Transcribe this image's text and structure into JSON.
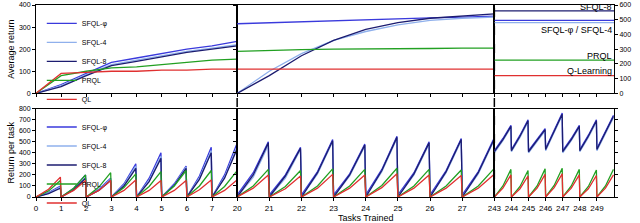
{
  "chart_data": [
    {
      "type": "line",
      "y_label": "Average return",
      "legend": "top left",
      "tick_labels": "y",
      "x": [
        0,
        1,
        2,
        3,
        4,
        5,
        6,
        7,
        8
      ],
      "xlim": [
        0,
        8
      ],
      "xticks": [
        0,
        1,
        2,
        3,
        4,
        5,
        6,
        7
      ],
      "ylim": [
        0,
        400
      ],
      "yticks": [
        0,
        100,
        200,
        300,
        400
      ],
      "series": [
        {
          "name": "SFQL-φ",
          "color": "#3a3adc",
          "values": [
            0,
            40,
            90,
            140,
            160,
            180,
            200,
            215,
            235
          ]
        },
        {
          "name": "SFQL-4",
          "color": "#8fb0ec",
          "values": [
            0,
            35,
            85,
            130,
            150,
            170,
            190,
            205,
            220
          ]
        },
        {
          "name": "SFQL-8",
          "color": "#1c1c70",
          "values": [
            0,
            30,
            80,
            125,
            145,
            165,
            185,
            200,
            215
          ]
        },
        {
          "name": "PRQL",
          "color": "#22a022",
          "values": [
            0,
            80,
            100,
            115,
            120,
            130,
            140,
            150,
            155
          ]
        },
        {
          "name": "QL",
          "color": "#e03030",
          "values": [
            0,
            90,
            95,
            100,
            100,
            105,
            105,
            110,
            110
          ]
        }
      ]
    },
    {
      "type": "line",
      "tick_labels": false,
      "x": [
        20,
        21,
        22,
        23,
        24,
        25,
        26,
        27,
        28
      ],
      "xlim": [
        20,
        28
      ],
      "xticks": [
        20,
        21,
        22,
        23,
        24,
        25,
        26,
        27
      ],
      "ylim": [
        0,
        400
      ],
      "yticks": [
        0,
        100,
        200,
        300,
        400
      ],
      "series": [
        {
          "color": "#3a3adc",
          "values": [
            315,
            320,
            325,
            330,
            335,
            340,
            342,
            345,
            350
          ]
        },
        {
          "color": "#8fb0ec",
          "values": [
            0,
            100,
            180,
            240,
            280,
            310,
            330,
            340,
            345
          ]
        },
        {
          "color": "#1c1c70",
          "values": [
            0,
            80,
            170,
            240,
            290,
            320,
            340,
            350,
            360
          ]
        },
        {
          "color": "#22a022",
          "values": [
            190,
            195,
            198,
            200,
            200,
            202,
            203,
            205,
            205
          ]
        },
        {
          "color": "#e03030",
          "values": [
            110,
            110,
            110,
            110,
            110,
            110,
            110,
            110,
            110
          ]
        }
      ]
    },
    {
      "type": "line",
      "tick_labels": "y",
      "x": [
        243,
        250
      ],
      "xlim": [
        243,
        250
      ],
      "xticks": [
        243,
        244,
        245,
        246,
        247,
        248,
        249
      ],
      "ylim": [
        0,
        600
      ],
      "yticks": [
        0,
        100,
        200,
        300,
        400,
        500,
        600
      ],
      "annotations": [
        {
          "text": "SFQL-8",
          "y": 585
        },
        {
          "text": "SFQL-φ / SFQL-4",
          "y": 430
        },
        {
          "text": "PRQL",
          "y": 255
        },
        {
          "text": "Q-Learning",
          "y": 150
        }
      ],
      "series": [
        {
          "color": "#3a3adc",
          "values": [
            495,
            495
          ]
        },
        {
          "color": "#8fb0ec",
          "values": [
            480,
            480
          ]
        },
        {
          "color": "#1c1c70",
          "values": [
            560,
            560
          ]
        },
        {
          "color": "#22a022",
          "values": [
            225,
            225
          ]
        },
        {
          "color": "#e03030",
          "values": [
            120,
            120
          ]
        }
      ]
    },
    {
      "type": "line",
      "y_label": "Return per task",
      "legend": "top left",
      "x": [
        0,
        0.5,
        0.97,
        1,
        1.5,
        1.97,
        2,
        2.5,
        2.97,
        3,
        3.5,
        3.97,
        4,
        4.5,
        4.97,
        5,
        5.5,
        5.97,
        6,
        6.5,
        6.97,
        7,
        7.5,
        7.97
      ],
      "xlim": [
        0,
        8
      ],
      "xticks": [
        0,
        1,
        2,
        3,
        4,
        5,
        6,
        7
      ],
      "ylim": [
        0,
        800
      ],
      "yticks": [
        0,
        100,
        200,
        300,
        400,
        500,
        600,
        700,
        800
      ],
      "series": [
        {
          "name": "SFQL-φ",
          "color": "#3a3adc",
          "values": [
            0,
            40,
            100,
            0,
            80,
            200,
            0,
            70,
            170,
            0,
            120,
            300,
            0,
            170,
            400,
            0,
            120,
            280,
            0,
            190,
            450,
            0,
            200,
            470
          ]
        },
        {
          "name": "SFQL-4",
          "color": "#8fb0ec",
          "values": [
            0,
            35,
            90,
            0,
            70,
            180,
            0,
            65,
            160,
            0,
            110,
            280,
            0,
            150,
            370,
            0,
            110,
            270,
            0,
            170,
            420,
            0,
            180,
            440
          ]
        },
        {
          "name": "SFQL-8",
          "color": "#1c1c70",
          "values": [
            0,
            30,
            80,
            0,
            65,
            170,
            0,
            60,
            150,
            0,
            100,
            260,
            0,
            140,
            350,
            0,
            105,
            260,
            0,
            160,
            400,
            0,
            170,
            420
          ]
        },
        {
          "name": "PRQL",
          "color": "#22a022",
          "values": [
            0,
            55,
            150,
            0,
            80,
            200,
            0,
            90,
            220,
            0,
            85,
            210,
            0,
            95,
            230,
            0,
            100,
            240,
            0,
            100,
            240,
            0,
            95,
            230
          ]
        },
        {
          "name": "QL",
          "color": "#e03030",
          "values": [
            0,
            70,
            180,
            0,
            60,
            150,
            0,
            60,
            150,
            0,
            60,
            155,
            0,
            60,
            150,
            0,
            60,
            150,
            0,
            65,
            155,
            0,
            60,
            150
          ]
        }
      ]
    },
    {
      "type": "line",
      "x_label": "Tasks Trained",
      "tick_labels": "x",
      "x": [
        20,
        20.5,
        20.97,
        21,
        21.5,
        21.97,
        22,
        22.5,
        22.97,
        23,
        23.5,
        23.97,
        24,
        24.5,
        24.97,
        25,
        25.5,
        25.97,
        26,
        26.5,
        26.97,
        27,
        27.5,
        27.97
      ],
      "xlim": [
        20,
        28
      ],
      "xticks": [
        20,
        21,
        22,
        23,
        24,
        25,
        26,
        27
      ],
      "ylim": [
        0,
        800
      ],
      "yticks": [
        0,
        100,
        200,
        300,
        400,
        500,
        600,
        700,
        800
      ],
      "series": [
        {
          "color": "#3a3adc",
          "values": [
            20,
            220,
            500,
            20,
            200,
            450,
            20,
            230,
            520,
            20,
            210,
            480,
            20,
            250,
            550,
            20,
            220,
            500,
            20,
            240,
            530,
            20,
            230,
            520
          ]
        },
        {
          "color": "#8fb0ec",
          "values": [
            0,
            180,
            470,
            0,
            170,
            430,
            0,
            210,
            500,
            0,
            190,
            460,
            0,
            230,
            530,
            0,
            200,
            480,
            0,
            220,
            510,
            0,
            210,
            500
          ]
        },
        {
          "color": "#1c1c70",
          "values": [
            0,
            200,
            490,
            0,
            190,
            440,
            0,
            220,
            510,
            0,
            200,
            470,
            0,
            240,
            540,
            0,
            210,
            490,
            0,
            230,
            520,
            0,
            220,
            510
          ]
        },
        {
          "color": "#22a022",
          "values": [
            0,
            100,
            250,
            0,
            95,
            240,
            0,
            100,
            255,
            0,
            100,
            250,
            0,
            105,
            260,
            0,
            100,
            250,
            0,
            100,
            245,
            0,
            100,
            250
          ]
        },
        {
          "color": "#e03030",
          "values": [
            0,
            80,
            200,
            0,
            75,
            190,
            0,
            80,
            205,
            0,
            80,
            200,
            0,
            85,
            210,
            0,
            80,
            200,
            0,
            80,
            195,
            0,
            80,
            200
          ]
        }
      ]
    },
    {
      "type": "line",
      "tick_labels": "x",
      "x": [
        243,
        243.5,
        243.97,
        244,
        244.5,
        244.97,
        245,
        245.5,
        245.97,
        246,
        246.5,
        246.97,
        247,
        247.5,
        247.97,
        248,
        248.5,
        248.97,
        249,
        249.5,
        249.97
      ],
      "xlim": [
        243,
        250
      ],
      "xticks": [
        243,
        244,
        245,
        246,
        247,
        248,
        249
      ],
      "ylim": [
        0,
        800
      ],
      "yticks": [
        0,
        100,
        200,
        300,
        400,
        500,
        600,
        700,
        800
      ],
      "series": [
        {
          "color": "#3a3adc",
          "values": [
            420,
            530,
            650,
            430,
            560,
            700,
            420,
            520,
            620,
            440,
            600,
            760,
            420,
            530,
            650,
            430,
            560,
            700,
            440,
            590,
            740
          ]
        },
        {
          "color": "#8fb0ec",
          "values": [
            400,
            510,
            630,
            410,
            540,
            680,
            400,
            500,
            600,
            420,
            580,
            740,
            400,
            510,
            630,
            410,
            540,
            680,
            420,
            570,
            720
          ]
        },
        {
          "color": "#1c1c70",
          "values": [
            410,
            520,
            640,
            420,
            550,
            690,
            410,
            510,
            610,
            430,
            590,
            750,
            410,
            520,
            640,
            420,
            550,
            690,
            430,
            580,
            730
          ]
        },
        {
          "color": "#22a022",
          "values": [
            0,
            100,
            250,
            0,
            95,
            240,
            0,
            100,
            255,
            0,
            105,
            260,
            0,
            100,
            250,
            0,
            95,
            245,
            0,
            100,
            250
          ]
        },
        {
          "color": "#e03030",
          "values": [
            0,
            80,
            200,
            0,
            75,
            190,
            0,
            80,
            205,
            0,
            85,
            210,
            0,
            80,
            200,
            0,
            75,
            195,
            0,
            80,
            200
          ]
        }
      ]
    }
  ]
}
